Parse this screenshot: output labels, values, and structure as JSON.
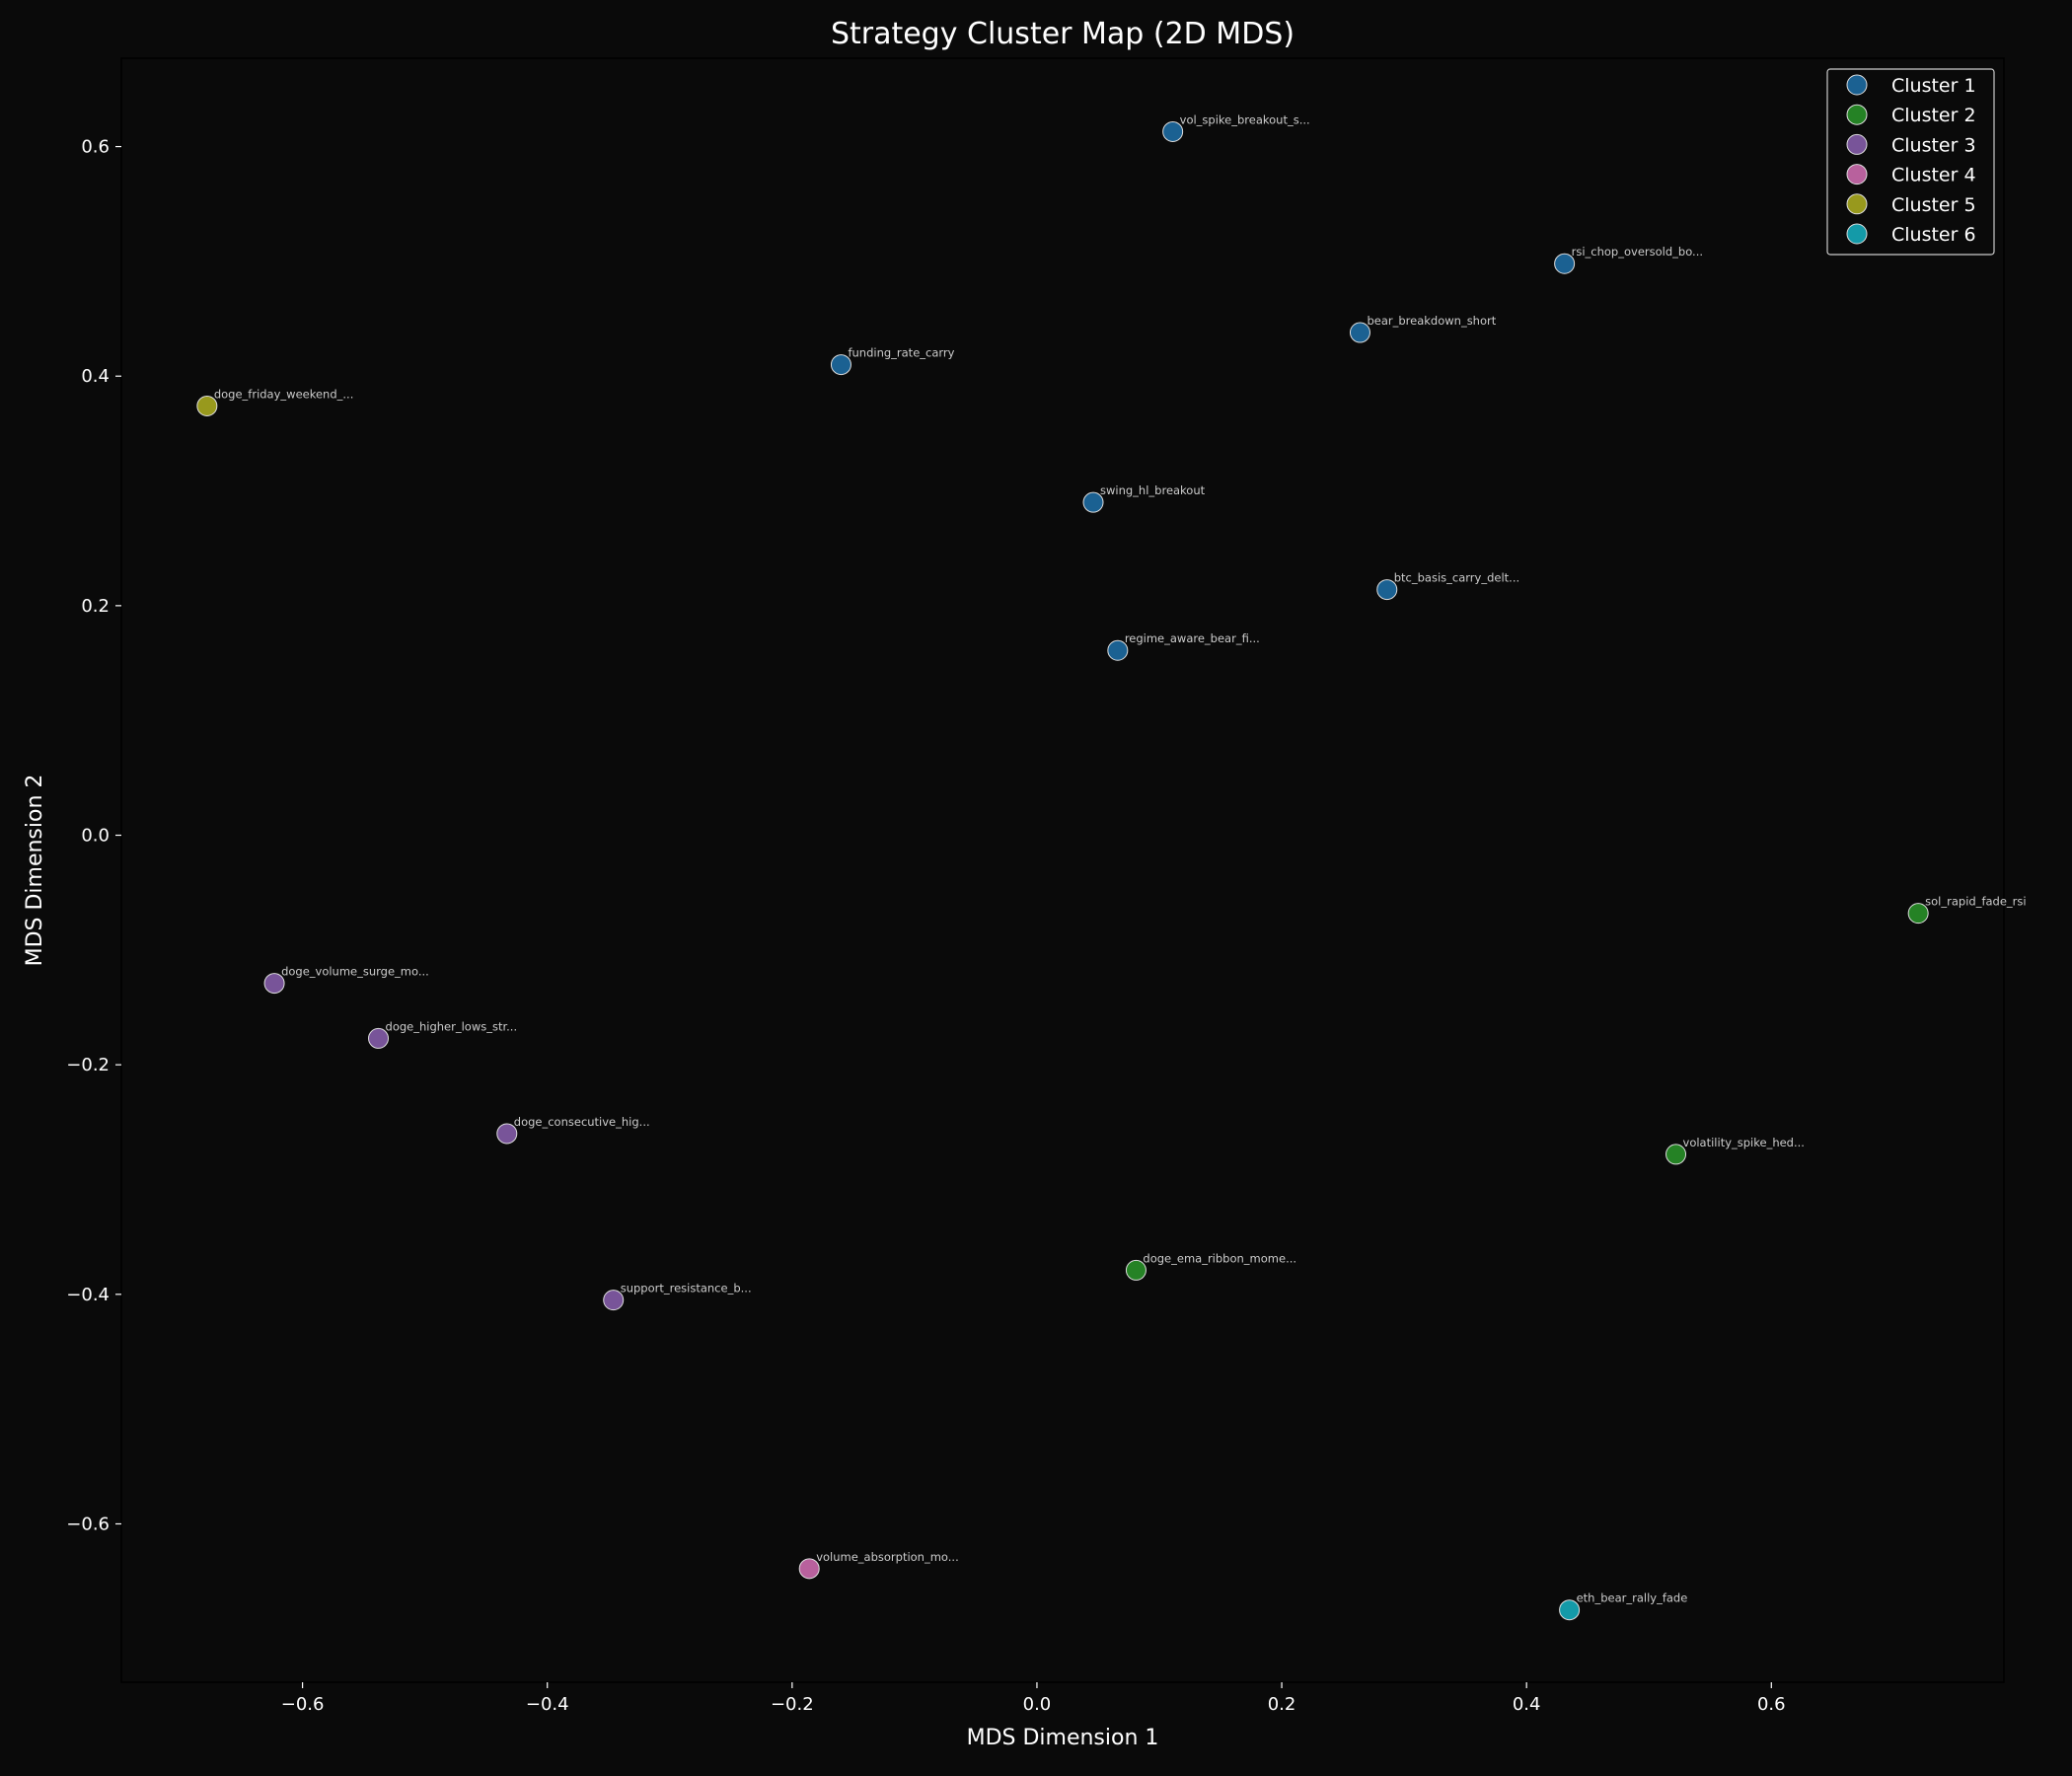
{
  "chart_data": {
    "type": "scatter",
    "title": "Strategy Cluster Map (2D MDS)",
    "xlabel": "MDS Dimension 1",
    "ylabel": "MDS Dimension 2",
    "xlim": [
      -0.748,
      0.79
    ],
    "ylim": [
      -0.738,
      0.677
    ],
    "xticks": [
      -0.6,
      -0.4,
      -0.2,
      0.0,
      0.2,
      0.4,
      0.6
    ],
    "xtick_labels": [
      "−0.6",
      "−0.4",
      "−0.2",
      "0.0",
      "0.2",
      "0.4",
      "0.6"
    ],
    "yticks": [
      -0.6,
      -0.4,
      -0.2,
      0.0,
      0.2,
      0.4,
      0.6
    ],
    "ytick_labels": [
      "−0.6",
      "−0.4",
      "−0.2",
      "0.0",
      "0.2",
      "0.4",
      "0.6"
    ],
    "grid": false,
    "legend_position": "top-right",
    "background": "#0a0a0a",
    "series": [
      {
        "name": "Cluster 1",
        "color": "#1f77b4",
        "points": [
          {
            "label": "vol_spike_breakout_s...",
            "x": 0.111,
            "y": 0.613
          },
          {
            "label": "rsi_chop_oversold_bo...",
            "x": 0.431,
            "y": 0.498
          },
          {
            "label": "bear_breakdown_short",
            "x": 0.264,
            "y": 0.438
          },
          {
            "label": "funding_rate_carry",
            "x": -0.16,
            "y": 0.41
          },
          {
            "label": "swing_hl_breakout",
            "x": 0.046,
            "y": 0.29
          },
          {
            "label": "btc_basis_carry_delt...",
            "x": 0.286,
            "y": 0.214
          },
          {
            "label": "regime_aware_bear_fi...",
            "x": 0.066,
            "y": 0.161
          }
        ]
      },
      {
        "name": "Cluster 2",
        "color": "#2ca02c",
        "points": [
          {
            "label": "sol_rapid_fade_rsi",
            "x": 0.72,
            "y": -0.068
          },
          {
            "label": "volatility_spike_hed...",
            "x": 0.522,
            "y": -0.278
          },
          {
            "label": "doge_ema_ribbon_mome...",
            "x": 0.081,
            "y": -0.379
          }
        ]
      },
      {
        "name": "Cluster 3",
        "color": "#9467bd",
        "points": [
          {
            "label": "doge_volume_surge_mo...",
            "x": -0.623,
            "y": -0.129
          },
          {
            "label": "doge_higher_lows_str...",
            "x": -0.538,
            "y": -0.177
          },
          {
            "label": "doge_consecutive_hig...",
            "x": -0.433,
            "y": -0.26
          },
          {
            "label": "support_resistance_b...",
            "x": -0.346,
            "y": -0.405
          }
        ]
      },
      {
        "name": "Cluster 4",
        "color": "#e377c2",
        "points": [
          {
            "label": "volume_absorption_mo...",
            "x": -0.186,
            "y": -0.639
          }
        ]
      },
      {
        "name": "Cluster 5",
        "color": "#bcbd22",
        "points": [
          {
            "label": "doge_friday_weekend_...",
            "x": -0.678,
            "y": 0.374
          }
        ]
      },
      {
        "name": "Cluster 6",
        "color": "#17becf",
        "points": [
          {
            "label": "eth_bear_rally_fade",
            "x": 0.435,
            "y": -0.675
          }
        ]
      }
    ]
  }
}
